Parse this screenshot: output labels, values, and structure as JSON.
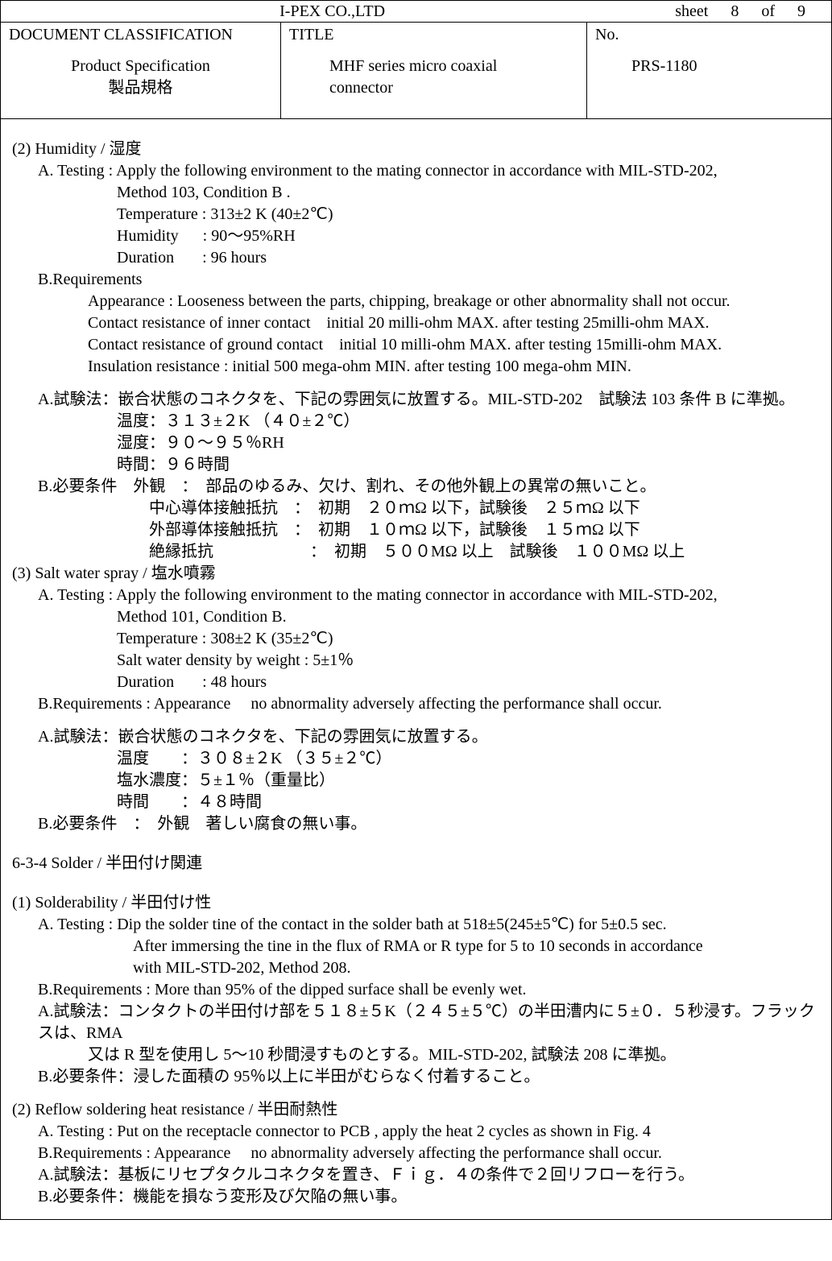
{
  "company": "I-PEX CO.,LTD",
  "sheet_label": "sheet",
  "sheet_page": "8",
  "sheet_of_label": "of",
  "sheet_total": "9",
  "header": {
    "doc_class_label": "DOCUMENT  CLASSIFICATION",
    "doc_class_en": "Product Specification",
    "doc_class_jp": "製品規格",
    "title_label": "TITLE",
    "title_en_line1": "MHF series micro coaxial",
    "title_en_line2": "connector",
    "no_label": "No.",
    "no_value": "PRS-1180"
  },
  "sec2_title": "(2) Humidity  /  湿度",
  "sec2_a1": "A. Testing : Apply the following environment to the mating connector in accordance with MIL-STD-202,",
  "sec2_a2": "Method 103, Condition B .",
  "sec2_a3": "Temperature : 313±2 K (40±2℃)",
  "sec2_a4": "Humidity      : 90～95%RH",
  "sec2_a5": "Duration       : 96 hours",
  "sec2_b_lbl": "B.Requirements",
  "sec2_b1": "Appearance : Looseness between the parts, chipping, breakage or other abnormality shall not occur.",
  "sec2_b2": "Contact resistance of inner contact    initial 20 milli-ohm MAX. after testing 25milli-ohm MAX.",
  "sec2_b3": "Contact resistance of ground contact    initial 10 milli-ohm MAX. after testing 15milli-ohm MAX.",
  "sec2_b4": "Insulation resistance : initial 500 mega-ohm MIN. after testing 100 mega-ohm MIN.",
  "sec2_ja_a1": "A.試験法：嵌合状態のコネクタを、下記の雰囲気に放置する。MIL-STD-202　試験法 103 条件 B に準拠。",
  "sec2_ja_a2": "温度：３１３±２K （４０±２℃）",
  "sec2_ja_a3": "湿度：９０～９５％RH",
  "sec2_ja_a4": "時間：９６時間",
  "sec2_ja_b1": "B.必要条件　外観　：　部品のゆるみ、欠け、割れ、その他外観上の異常の無いこと。",
  "sec2_ja_b2": "中心導体接触抵抗　：　初期　２０ｍΩ 以下，試験後　２５ｍΩ 以下",
  "sec2_ja_b3": "外部導体接触抵抗　：　初期　１０ｍΩ 以下，試験後　１５ｍΩ 以下",
  "sec2_ja_b4": "絶縁抵抗　　　　　　：　初期　５００MΩ 以上　試験後　１００MΩ 以上",
  "sec3_title": "(3) Salt water spray /  塩水噴霧",
  "sec3_a1": "A. Testing : Apply the following environment to the mating connector in accordance with MIL-STD-202,",
  "sec3_a2": "Method 101, Condition B.",
  "sec3_a3": "Temperature : 308±2 K (35±2℃)",
  "sec3_a4": "Salt water density by weight : 5±1％",
  "sec3_a5": "Duration       : 48 hours",
  "sec3_b1": "B.Requirements : Appearance     no abnormality adversely affecting the performance shall occur.",
  "sec3_ja_a1": "A.試験法：嵌合状態のコネクタを、下記の雰囲気に放置する。",
  "sec3_ja_a2": "温度　　：３０８±２K （３５±２℃）",
  "sec3_ja_a3": "塩水濃度：５±１％（重量比）",
  "sec3_ja_a4": "時間　　：４８時間",
  "sec3_ja_b1": "B.必要条件　：　外観　著しい腐食の無い事。",
  "sec634_title": "6-3-4   Solder /  半田付け関連",
  "sec1s_title": "(1) Solderability /  半田付け性",
  "sec1s_a1": "A. Testing : Dip the solder tine of the contact in the solder bath at 518±5(245±5℃) for 5±0.5 sec.",
  "sec1s_a2": "After immersing the tine in the flux of RMA or R type for 5 to 10 seconds in accordance",
  "sec1s_a3": "with MIL-STD-202, Method 208.",
  "sec1s_b1": "B.Requirements : More than 95% of the dipped surface shall be evenly wet.",
  "sec1s_ja_a1": "A.試験法：コンタクトの半田付け部を５１８±５K（２４５±５℃）の半田漕内に５±０．５秒浸す。フラックスは、RMA",
  "sec1s_ja_a2": "又は R 型を使用し 5～10 秒間浸すものとする。MIL-STD-202, 試験法 208 に準拠。",
  "sec1s_ja_b1": "B.必要条件：浸した面積の 95％以上に半田がむらなく付着すること。",
  "sec2r_title": "(2) Reflow soldering heat resistance /  半田耐熱性",
  "sec2r_a1": "A. Testing : Put on the receptacle connector to PCB , apply the heat 2 cycles as shown in Fig. 4",
  "sec2r_b1": "B.Requirements : Appearance     no abnormality adversely affecting the performance shall occur.",
  "sec2r_ja_a1": "A.試験法：基板にリセプタクルコネクタを置き、Ｆｉｇ．４の条件で２回リフローを行う。",
  "sec2r_ja_b1": "B.必要条件：機能を損なう変形及び欠陥の無い事。"
}
